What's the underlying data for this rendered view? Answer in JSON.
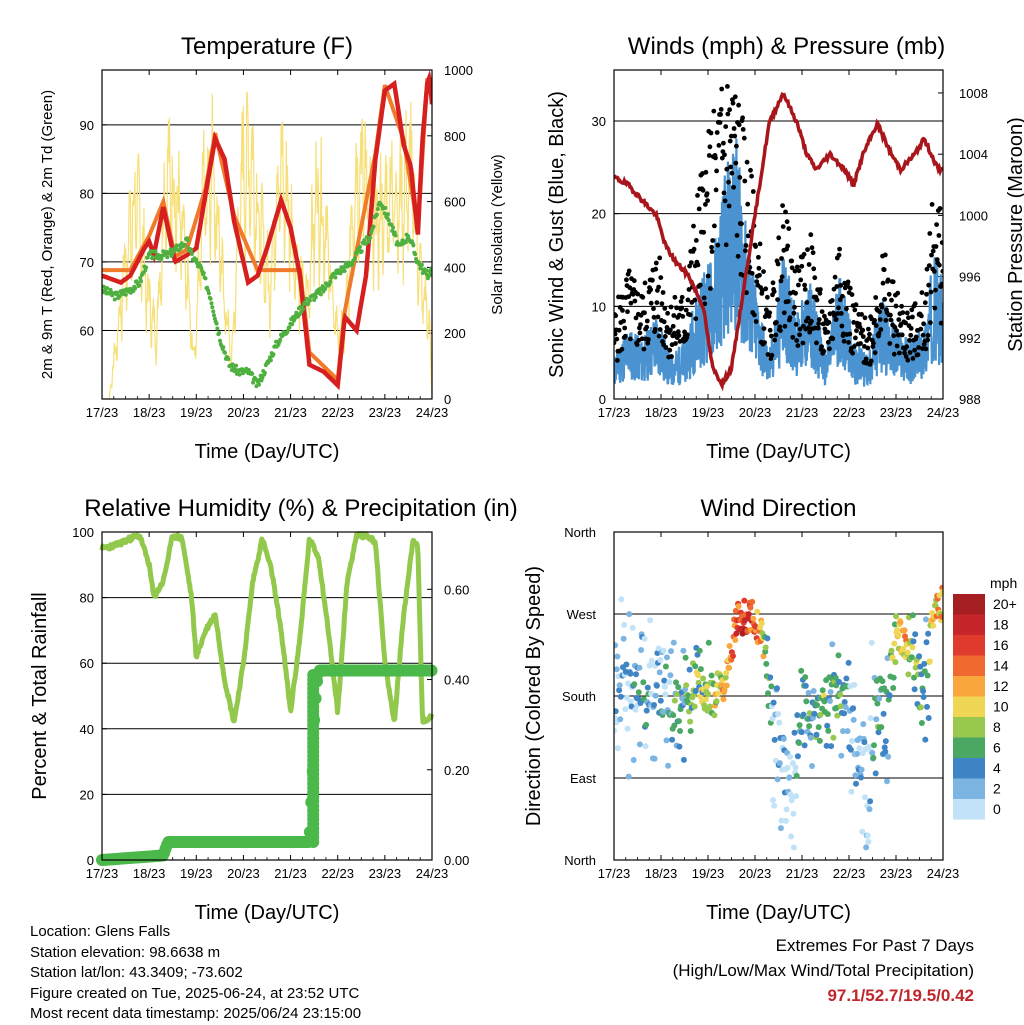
{
  "chart_data": [
    {
      "type": "line",
      "title": "Temperature (F)",
      "xlabel": "Time (Day/UTC)",
      "ylabel": "2m & 9m T (Red, Orange) & 2m Td (Green)",
      "y2label": "Solar Insolation (Yellow)",
      "xticks": [
        "17/23",
        "18/23",
        "19/23",
        "20/23",
        "21/23",
        "22/23",
        "23/23",
        "24/23"
      ],
      "yticks": [
        "60",
        "70",
        "80",
        "90"
      ],
      "y2ticks": [
        "0",
        "200",
        "400",
        "600",
        "800",
        "1000"
      ],
      "xlim": [
        0,
        7
      ],
      "ylim": [
        50,
        98
      ],
      "y2lim": [
        0,
        1000
      ],
      "colors": {
        "t2m": "#d62020",
        "t9m": "#f07a2a",
        "td": "#4fb040",
        "solar": "#f7e07a"
      },
      "series": [
        {
          "name": "2m T",
          "x": [
            0,
            0.4,
            0.6,
            0.9,
            1.0,
            1.1,
            1.3,
            1.55,
            1.8,
            2.0,
            2.2,
            2.4,
            2.6,
            2.8,
            3.0,
            3.1,
            3.3,
            3.5,
            3.8,
            4.0,
            4.2,
            4.4,
            4.7,
            5.0,
            5.15,
            5.4,
            5.6,
            5.8,
            6.0,
            6.2,
            6.4,
            6.55,
            6.7,
            6.8,
            6.9,
            6.95,
            7.0
          ],
          "values": [
            68,
            67,
            68,
            72,
            73,
            71,
            78,
            70,
            71,
            72,
            80,
            88,
            85,
            76,
            70,
            67,
            68,
            72,
            79,
            75,
            68,
            55,
            54,
            52,
            62,
            60,
            68,
            85,
            95,
            96,
            87,
            84,
            74,
            88,
            96,
            97,
            93
          ]
        },
        {
          "name": "9m T",
          "x": [
            0,
            0.6,
            1.0,
            1.3,
            1.55,
            1.8,
            2.2,
            2.4,
            2.8,
            3.3,
            4.2,
            4.4,
            5.0,
            5.15,
            5.8,
            6.0,
            6.4,
            6.7,
            6.9,
            7.0
          ],
          "values": [
            68,
            68,
            73,
            78,
            70,
            71,
            80,
            88,
            76,
            68,
            68,
            56,
            52,
            62,
            85,
            95,
            87,
            74,
            96,
            93
          ]
        },
        {
          "name": "2m Td",
          "x": [
            0,
            0.3,
            0.6,
            0.8,
            1.0,
            1.2,
            1.4,
            1.6,
            1.8,
            1.9,
            2.1,
            2.3,
            2.5,
            2.7,
            2.9,
            3.1,
            3.3,
            3.5,
            3.7,
            3.9,
            4.1,
            4.3,
            4.5,
            4.7,
            4.9,
            5.1,
            5.3,
            5.5,
            5.7,
            5.9,
            6.1,
            6.3,
            6.5,
            6.7,
            6.9,
            7.0
          ],
          "values": [
            66,
            65,
            66,
            67,
            71,
            71,
            71,
            72,
            73,
            71,
            69,
            65,
            59,
            55,
            54,
            54,
            52,
            55,
            58,
            60,
            62,
            64,
            65,
            66,
            68,
            69,
            70,
            72,
            74,
            79,
            76,
            72,
            74,
            70,
            68,
            69
          ]
        },
        {
          "name": "Solar Insolation",
          "axis": "y2",
          "x": [
            0,
            0.15,
            0.35,
            0.55,
            0.75,
            0.95,
            1.15,
            1.35,
            1.55,
            1.75,
            1.95,
            2.15,
            2.35,
            2.55,
            2.75,
            2.95,
            3.15,
            3.35,
            3.55,
            3.75,
            3.95,
            4.15,
            4.35,
            4.55,
            4.75,
            4.95,
            5.15,
            5.35,
            5.55,
            5.75,
            5.95,
            6.15,
            6.35,
            6.55,
            6.75,
            6.95,
            7.0
          ],
          "values": [
            0,
            0,
            300,
            650,
            820,
            450,
            250,
            900,
            850,
            600,
            150,
            850,
            970,
            500,
            150,
            900,
            1000,
            700,
            450,
            950,
            800,
            500,
            400,
            850,
            700,
            300,
            250,
            880,
            960,
            700,
            750,
            870,
            800,
            950,
            500,
            300,
            0
          ]
        }
      ]
    },
    {
      "type": "scatter",
      "title": "Winds (mph) & Pressure (mb)",
      "xlabel": "Time (Day/UTC)",
      "ylabel": "Sonic Wind & Gust (Blue, Black)",
      "y2label": "Station Pressure (Maroon)",
      "xticks": [
        "17/23",
        "18/23",
        "19/23",
        "20/23",
        "21/23",
        "22/23",
        "23/23",
        "24/23"
      ],
      "yticks": [
        "0",
        "10",
        "20",
        "30"
      ],
      "y2ticks": [
        "988",
        "992",
        "996",
        "1000",
        "1004",
        "1008"
      ],
      "xlim": [
        0,
        7
      ],
      "ylim": [
        0,
        35.5
      ],
      "y2lim": [
        988,
        1009.5
      ],
      "colors": {
        "wind": "#4b93d0",
        "gust": "#000000",
        "pressure": "#a8161b"
      },
      "series": [
        {
          "name": "Sonic Wind",
          "x": [
            0,
            0.3,
            0.6,
            0.9,
            1.2,
            1.5,
            1.8,
            2.1,
            2.4,
            2.6,
            2.8,
            3.0,
            3.3,
            3.6,
            3.9,
            4.2,
            4.5,
            4.8,
            5.1,
            5.4,
            5.7,
            6.0,
            6.3,
            6.6,
            6.8,
            7.0
          ],
          "values": [
            3,
            5,
            4,
            6,
            3,
            4,
            8,
            10,
            16,
            18,
            12,
            8,
            3,
            10,
            6,
            8,
            3,
            9,
            4,
            3,
            7,
            5,
            4,
            5,
            10,
            8
          ]
        },
        {
          "name": "Gust",
          "x": [
            0,
            0.3,
            0.6,
            0.9,
            1.2,
            1.5,
            1.8,
            2.1,
            2.4,
            2.6,
            2.8,
            3.0,
            3.3,
            3.6,
            3.9,
            4.2,
            4.5,
            4.8,
            5.1,
            5.4,
            5.7,
            6.0,
            6.3,
            6.6,
            6.8,
            7.0
          ],
          "values": [
            8,
            12,
            10,
            14,
            9,
            10,
            20,
            26,
            32,
            30,
            24,
            18,
            8,
            18,
            12,
            15,
            7,
            16,
            9,
            7,
            14,
            10,
            8,
            10,
            20,
            16
          ]
        },
        {
          "name": "Station Pressure",
          "axis": "y2",
          "x": [
            0,
            0.3,
            0.6,
            0.9,
            1.1,
            1.3,
            1.6,
            1.9,
            2.1,
            2.3,
            2.5,
            2.7,
            2.9,
            3.1,
            3.3,
            3.6,
            3.9,
            4.1,
            4.3,
            4.6,
            4.9,
            5.1,
            5.3,
            5.6,
            5.9,
            6.1,
            6.4,
            6.6,
            6.9,
            7.0
          ],
          "values": [
            1002.5,
            1002,
            1001,
            1000,
            998,
            997,
            996,
            994,
            990,
            989,
            990,
            994,
            998,
            1002,
            1006,
            1008,
            1006,
            1004,
            1003,
            1004,
            1003,
            1002,
            1004,
            1006,
            1004,
            1003,
            1004,
            1005,
            1003,
            1003
          ]
        }
      ]
    },
    {
      "type": "line",
      "title": "Relative Humidity (%) & Precipitation (in)",
      "xlabel": "Time (Day/UTC)",
      "ylabel": "Percent & Total Rainfall",
      "xticks": [
        "17/23",
        "18/23",
        "19/23",
        "20/23",
        "21/23",
        "22/23",
        "23/23",
        "24/23"
      ],
      "yticks": [
        "0",
        "20",
        "40",
        "60",
        "80",
        "100"
      ],
      "y2ticks": [
        "0.00",
        "0.20",
        "0.40",
        "0.60"
      ],
      "xlim": [
        0,
        7
      ],
      "ylim": [
        0,
        100
      ],
      "y2lim": [
        0,
        0.727
      ],
      "colors": {
        "rh": "#92c84c",
        "precip": "#4bb84a"
      },
      "series": [
        {
          "name": "Relative Humidity",
          "x": [
            0,
            0.3,
            0.6,
            0.8,
            1.0,
            1.1,
            1.3,
            1.5,
            1.7,
            1.9,
            2.0,
            2.2,
            2.4,
            2.6,
            2.8,
            3.0,
            3.2,
            3.4,
            3.6,
            3.8,
            4.0,
            4.2,
            4.4,
            4.6,
            4.8,
            5.0,
            5.2,
            5.4,
            5.6,
            5.8,
            6.0,
            6.2,
            6.4,
            6.6,
            6.7,
            6.8,
            7.0
          ],
          "values": [
            95,
            96,
            98,
            99,
            90,
            80,
            85,
            99,
            98,
            80,
            62,
            70,
            75,
            55,
            42,
            60,
            85,
            98,
            88,
            70,
            45,
            68,
            98,
            92,
            70,
            45,
            85,
            99,
            99,
            97,
            60,
            42,
            75,
            98,
            95,
            42,
            44
          ]
        },
        {
          "name": "Total Precipitation",
          "axis": "y2",
          "x": [
            0,
            1.3,
            1.4,
            2.0,
            3.0,
            4.0,
            4.4,
            4.45,
            4.48,
            4.5,
            4.55,
            4.6,
            5.0,
            6.0,
            7.0
          ],
          "values": [
            0,
            0.01,
            0.04,
            0.04,
            0.04,
            0.04,
            0.04,
            0.15,
            0.22,
            0.31,
            0.39,
            0.42,
            0.42,
            0.42,
            0.42
          ]
        }
      ]
    },
    {
      "type": "scatter",
      "title": "Wind Direction",
      "xlabel": "Time (Day/UTC)",
      "ylabel": "Direction (Colored By Speed)",
      "xticks": [
        "17/23",
        "18/23",
        "19/23",
        "20/23",
        "21/23",
        "22/23",
        "23/23",
        "24/23"
      ],
      "yticks": [
        "North",
        "East",
        "South",
        "West",
        "North"
      ],
      "xlim": [
        0,
        7
      ],
      "ylim": [
        0,
        360
      ],
      "legend": {
        "title": "mph",
        "labels": [
          "20+",
          "18",
          "16",
          "14",
          "12",
          "10",
          "8",
          "6",
          "4",
          "2",
          "0"
        ],
        "colors": [
          "#a51e22",
          "#c6252a",
          "#e03a2c",
          "#f06a2f",
          "#f9a63d",
          "#efd655",
          "#98c84e",
          "#4aa863",
          "#3f84c4",
          "#7cb5e2",
          "#c2e2f7"
        ]
      },
      "series": [
        {
          "name": "Direction",
          "x": [
            0,
            0.3,
            0.6,
            0.9,
            1.2,
            1.5,
            1.8,
            2.1,
            2.4,
            2.6,
            2.8,
            3.0,
            3.2,
            3.4,
            3.6,
            3.8,
            4.0,
            4.2,
            4.4,
            4.6,
            4.8,
            5.0,
            5.2,
            5.4,
            5.6,
            5.8,
            6.0,
            6.2,
            6.4,
            6.6,
            6.8,
            7.0
          ],
          "values": [
            190,
            185,
            180,
            190,
            170,
            175,
            190,
            180,
            200,
            260,
            270,
            265,
            240,
            150,
            100,
            60,
            180,
            150,
            170,
            160,
            180,
            170,
            120,
            80,
            180,
            150,
            250,
            240,
            220,
            180,
            270,
            280
          ],
          "speed": [
            2,
            3,
            4,
            3,
            5,
            6,
            8,
            9,
            12,
            16,
            18,
            15,
            10,
            3,
            2,
            1,
            6,
            5,
            8,
            6,
            7,
            4,
            3,
            1,
            6,
            5,
            11,
            12,
            8,
            4,
            12,
            13
          ]
        }
      ]
    }
  ],
  "info": {
    "location": "Location: Glens Falls",
    "elevation": "Station elevation: 98.6638 m",
    "latlon": "Station lat/lon: 43.3409; -73.602",
    "created": "Figure created on Tue, 2025-06-24, at 23:52 UTC",
    "recent": "Most recent data timestamp: 2025/06/24 23:15:00"
  },
  "extremes": {
    "heading": "Extremes For Past 7 Days",
    "subheading": "(High/Low/Max Wind/Total Precipitation)",
    "values": "97.1/52.7/19.5/0.42"
  }
}
